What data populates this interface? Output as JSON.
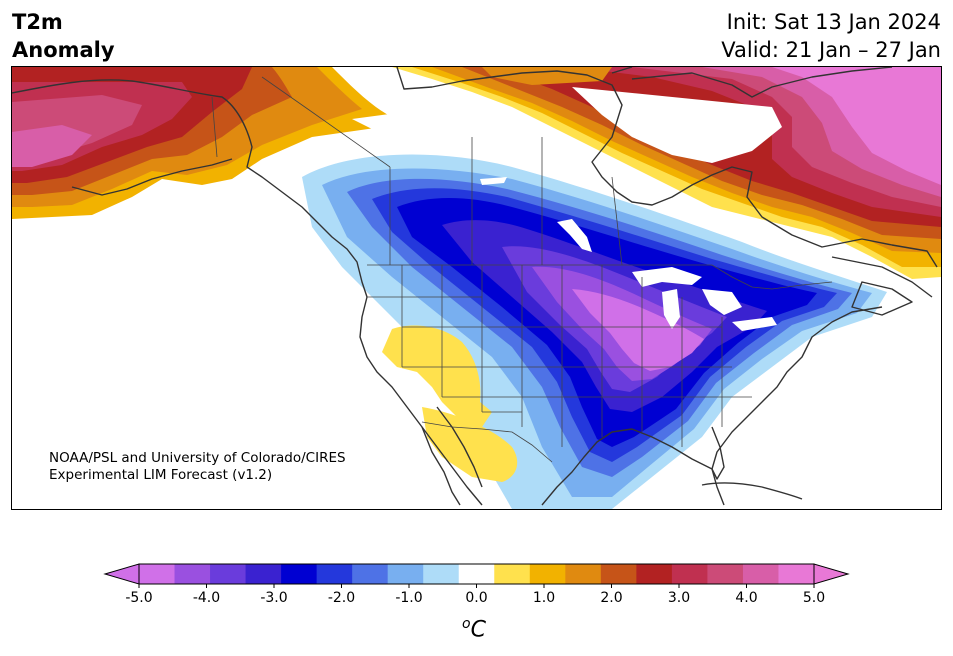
{
  "title": {
    "variable_line1": "T2m",
    "variable_line2": "Anomaly",
    "init": "Init: Sat 13 Jan 2024",
    "valid": "Valid: 21 Jan – 27 Jan"
  },
  "credit": {
    "line1": "NOAA/PSL and University of Colorado/CIRES",
    "line2": "Experimental LIM Forecast (v1.2)"
  },
  "colorbar": {
    "ticks": [
      "-5.0",
      "-4.0",
      "-3.0",
      "-2.0",
      "-1.0",
      "0.0",
      "1.0",
      "2.0",
      "3.0",
      "4.0",
      "5.0"
    ],
    "unit_sup": "o",
    "unit": "C",
    "colors": [
      "#d070e8",
      "#9a50e0",
      "#6a3cdc",
      "#3a22d0",
      "#0000d2",
      "#2438dc",
      "#4e72e6",
      "#78aff0",
      "#aedcf8",
      "#ffffff",
      "#ffe14d",
      "#f2b200",
      "#e08a10",
      "#c65418",
      "#b22222",
      "#c03050",
      "#cc4b78",
      "#d85ea8",
      "#e878d6"
    ],
    "min_color": "#d070e8",
    "max_color": "#e878d6"
  },
  "map": {
    "variable": "2-m temperature anomaly",
    "region": "North America",
    "land_color": "#ffffff",
    "border_color": "#333333"
  }
}
